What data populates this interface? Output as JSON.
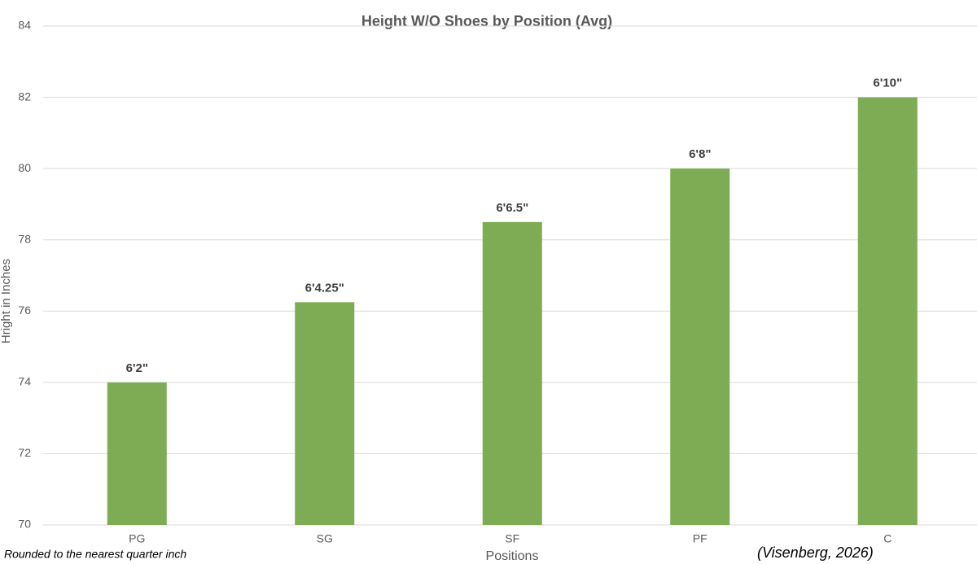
{
  "chart_data": {
    "type": "bar",
    "title": "Height W/O Shoes by Position (Avg)",
    "x_label": "Positions",
    "y_label": "Hright in Inches",
    "categories": [
      "PG",
      "SG",
      "SF",
      "PF",
      "C"
    ],
    "values": [
      74,
      76.25,
      78.5,
      80,
      82
    ],
    "value_labels": [
      "6'2\"",
      "6'4.25\"",
      "6'6.5\"",
      "6'8\"",
      "6'10\""
    ],
    "color": "#7dac54",
    "ylim": [
      70,
      84
    ],
    "yticks": [
      70,
      72,
      74,
      76,
      78,
      80,
      82,
      84
    ],
    "grid": true,
    "annotations": [
      "Rounded to the nearest quarter inch",
      "(Visenberg, 2026)"
    ]
  }
}
